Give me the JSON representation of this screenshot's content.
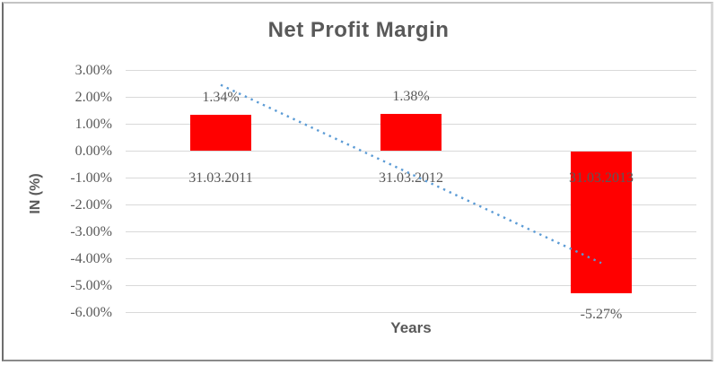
{
  "chart_data": {
    "type": "bar",
    "title": "Net Profit Margin",
    "xlabel": "Years",
    "ylabel": "IN (%)",
    "categories": [
      "31.03.2011",
      "31.03.2012",
      "31.03.2013"
    ],
    "values": [
      1.34,
      1.38,
      -5.27
    ],
    "data_labels": [
      "1.34%",
      "1.38%",
      "-5.27%"
    ],
    "yticks": [
      "3.00%",
      "2.00%",
      "1.00%",
      "0.00%",
      "-1.00%",
      "-2.00%",
      "-3.00%",
      "-4.00%",
      "-5.00%",
      "-6.00%"
    ],
    "ytick_values": [
      3,
      2,
      1,
      0,
      -1,
      -2,
      -3,
      -4,
      -5,
      -6
    ],
    "ylim": [
      -6,
      3
    ],
    "grid": true,
    "legend": false,
    "bar_color": "#FF0000",
    "gridline_color": "#D9D9D9",
    "text_color": "#595959",
    "trendline": {
      "type": "linear",
      "style": "dotted",
      "color": "#5B9BD5",
      "start_value": 2.46,
      "end_value": -4.16
    }
  }
}
